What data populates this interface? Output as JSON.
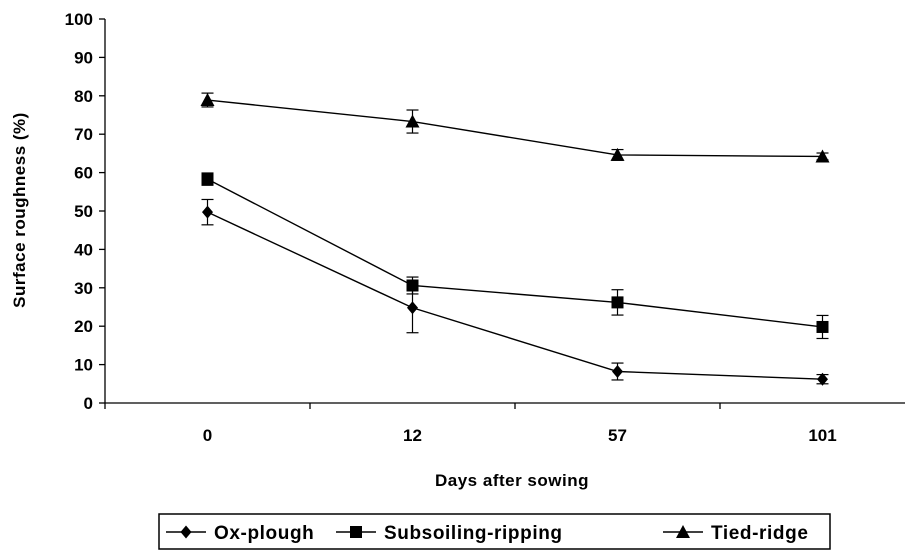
{
  "chart_data": {
    "type": "line",
    "xlabel": "Days after sowing",
    "ylabel": "Surface roughness (%)",
    "categories": [
      "0",
      "12",
      "57",
      "101"
    ],
    "ylim": [
      0,
      100
    ],
    "yticks": [
      0,
      10,
      20,
      30,
      40,
      50,
      60,
      70,
      80,
      90,
      100
    ],
    "grid": false,
    "legend_position": "bottom",
    "series": [
      {
        "name": "Ox-plough",
        "marker": "diamond",
        "values": [
          49.7,
          24.8,
          8.2,
          6.2
        ],
        "errors": [
          3.3,
          6.5,
          2.2,
          1.2
        ]
      },
      {
        "name": "Subsoiling-ripping",
        "marker": "square",
        "values": [
          58.3,
          30.6,
          26.2,
          19.8
        ],
        "errors": [
          1.6,
          2.2,
          3.3,
          3.0
        ]
      },
      {
        "name": "Tied-ridge",
        "marker": "triangle",
        "values": [
          78.9,
          73.3,
          64.6,
          64.2
        ],
        "errors": [
          1.8,
          3.0,
          1.4,
          0.9
        ]
      }
    ]
  }
}
